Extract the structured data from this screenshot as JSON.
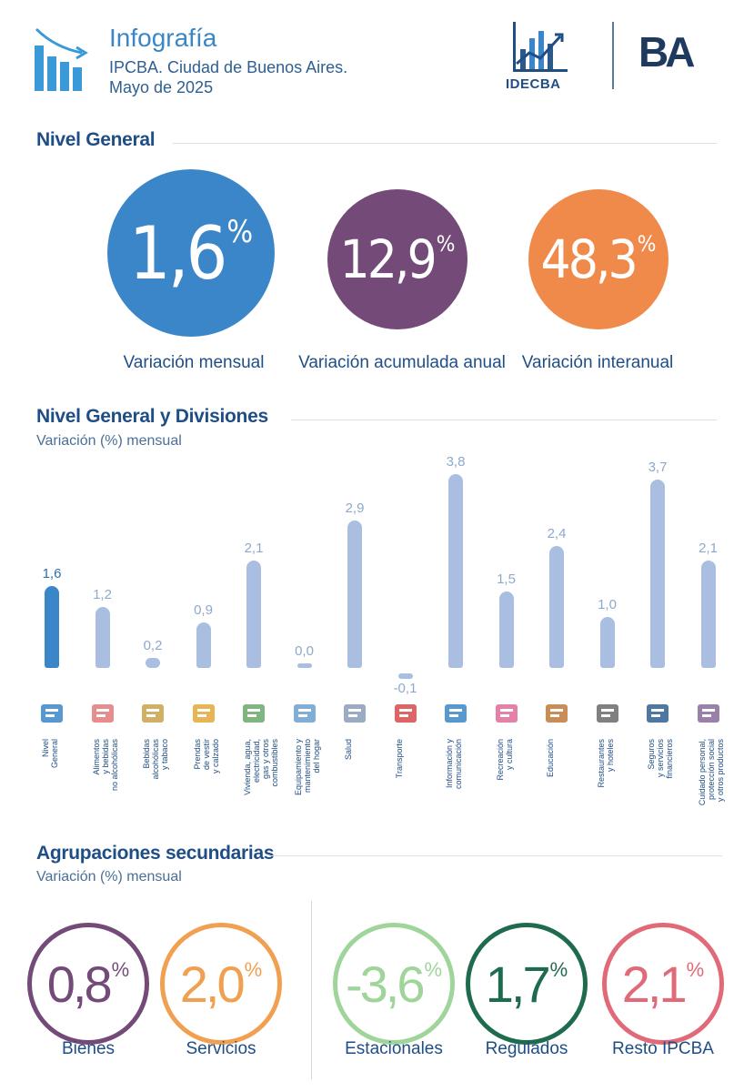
{
  "header": {
    "title": "Infografía",
    "subtitle": "IPCBA. Ciudad de Buenos Aires.",
    "period": "Mayo de 2025",
    "logo_idecba": "IDECBA",
    "logo_ba": "BA"
  },
  "nivel_general": {
    "title": "Nivel General",
    "items": [
      {
        "value": "1,6",
        "pct": "%",
        "label": "Variación mensual",
        "color": "#3a86c8"
      },
      {
        "value": "12,9",
        "pct": "%",
        "label": "Variación acumulada anual",
        "color": "#734a78"
      },
      {
        "value": "48,3",
        "pct": "%",
        "label": "Variación interanual",
        "color": "#f08a4b"
      }
    ]
  },
  "divisiones": {
    "title": "Nivel General y Divisiones",
    "subtitle": "Variación (%) mensual"
  },
  "chart_data": {
    "type": "bar",
    "title": "Nivel General y Divisiones",
    "ylabel": "Variación (%) mensual",
    "ylim": [
      -0.1,
      3.8
    ],
    "categories": [
      "Nivel General",
      "Alimentos y bebidas no alcohólicas",
      "Bebidas alcohólicas y tabaco",
      "Prendas de vestir y calzado",
      "Vivienda, agua, electricidad, gas y otros combustibles",
      "Equipamiento y mantenimiento del hogar",
      "Salud",
      "Transporte",
      "Información y comunicación",
      "Recreación y cultura",
      "Educación",
      "Restaurantes y hoteles",
      "Seguros y servicios financieros",
      "Cuidado personal, protección social y otros productos"
    ],
    "category_labels": [
      "Nivel\nGeneral",
      "Alimentos\ny bebidas\nno alcohólicas",
      "Bebidas\nalcohólicas\ny tabaco",
      "Prendas\nde vestir\ny calzado",
      "Vivienda, agua,\nelectricidad,\ngas y otros\ncombustibles",
      "Equipamiento y\nmantenimiento\ndel hogar",
      "Salud",
      "Transporte",
      "Información y\ncomunicación",
      "Recreación\ny cultura",
      "Educación",
      "Restaurantes\ny hoteles",
      "Seguros\ny servicios\nfinancieros",
      "Cuidado personal,\nprotección social\ny otros productos"
    ],
    "values": [
      1.6,
      1.2,
      0.2,
      0.9,
      2.1,
      0.0,
      2.9,
      -0.1,
      3.8,
      1.5,
      2.4,
      1.0,
      3.7,
      2.1
    ],
    "value_labels": [
      "1,6",
      "1,2",
      "0,2",
      "0,9",
      "2,1",
      "0,0",
      "2,9",
      "-0,1",
      "3,8",
      "1,5",
      "2,4",
      "1,0",
      "3,7",
      "2,1"
    ],
    "highlight_color": "#3a86c8",
    "bar_color": "#a9bee0"
  },
  "agrupaciones": {
    "title": "Agrupaciones secundarias",
    "subtitle": "Variación (%) mensual",
    "items": [
      {
        "value": "0,8",
        "pct": "%",
        "label": "Bienes",
        "color": "#734a78"
      },
      {
        "value": "2,0",
        "pct": "%",
        "label": "Servicios",
        "color": "#f0a050"
      },
      {
        "value": "-3,6",
        "pct": "%",
        "label": "Estacionales",
        "color": "#9fd49a"
      },
      {
        "value": "1,7",
        "pct": "%",
        "label": "Regulados",
        "color": "#1e6b4e"
      },
      {
        "value": "2,1",
        "pct": "%",
        "label": "Resto IPCBA",
        "color": "#e06a78"
      }
    ]
  }
}
